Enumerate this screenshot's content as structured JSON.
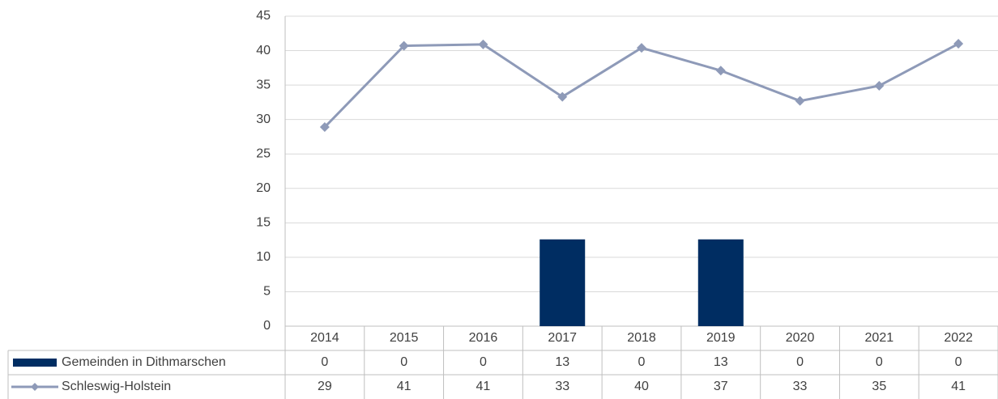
{
  "chart_data": {
    "type": "bar_line_table",
    "categories": [
      "2014",
      "2015",
      "2016",
      "2017",
      "2018",
      "2019",
      "2020",
      "2021",
      "2022"
    ],
    "series": [
      {
        "name": "Gemeinden in Dithmarschen",
        "type": "bar",
        "color": "#002d62",
        "values": [
          0,
          0,
          0,
          12.6,
          0,
          12.6,
          0,
          0,
          0
        ],
        "value_labels": [
          "0",
          "0",
          "0",
          "13",
          "0",
          "13",
          "0",
          "0",
          "0"
        ]
      },
      {
        "name": "Schleswig-Holstein",
        "type": "line",
        "color": "#8e9ab8",
        "values": [
          28.9,
          40.7,
          40.9,
          33.3,
          40.4,
          37.1,
          32.7,
          34.9,
          41.0
        ],
        "value_labels": [
          "29",
          "41",
          "41",
          "33",
          "40",
          "37",
          "33",
          "35",
          "41"
        ]
      }
    ],
    "ylim": [
      0,
      45
    ],
    "yticks": [
      0,
      5,
      10,
      15,
      20,
      25,
      30,
      35,
      40,
      45
    ],
    "grid": true
  }
}
